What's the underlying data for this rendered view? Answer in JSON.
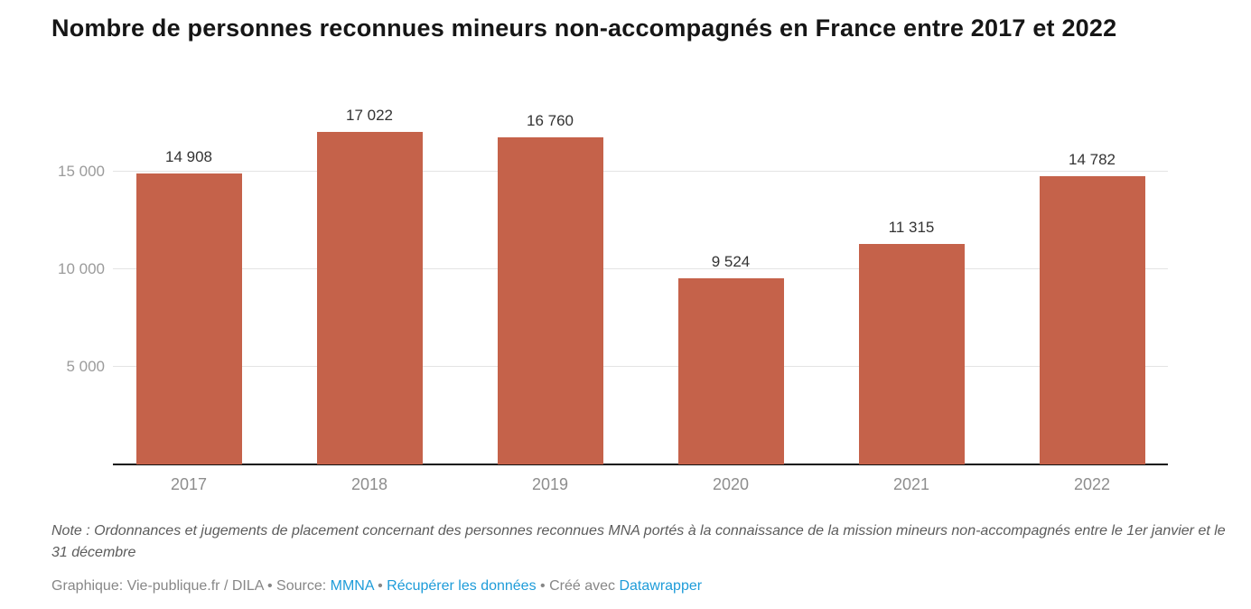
{
  "title": "Nombre de personnes reconnues mineurs non-accompagnés en France entre 2017 et 2022",
  "chart_data": {
    "type": "bar",
    "categories": [
      "2017",
      "2018",
      "2019",
      "2020",
      "2021",
      "2022"
    ],
    "values": [
      14908,
      17022,
      16760,
      9524,
      11315,
      14782
    ],
    "value_labels": [
      "14 908",
      "17 022",
      "16 760",
      "9 524",
      "11 315",
      "14 782"
    ],
    "yticks": [
      {
        "value": 5000,
        "label": "5 000"
      },
      {
        "value": 10000,
        "label": "10 000"
      },
      {
        "value": 15000,
        "label": "15 000"
      }
    ],
    "ylim": [
      0,
      17300
    ],
    "xlabel": "",
    "ylabel": "",
    "grid": true,
    "legend": "none",
    "bar_color": "#c5624a"
  },
  "note": {
    "text": "Note : Ordonnances et jugements de placement concernant des personnes reconnues MNA portés à la connaissance de la mission mineurs non-accompagnés entre le 1er janvier et le 31 décembre"
  },
  "footer": {
    "credit": "Graphique: Vie-publique.fr / DILA",
    "separator": "•",
    "source_label": "Source:",
    "source_link": "MMNA",
    "data_link": "Récupérer les données",
    "created_label": "Créé avec",
    "tool_link": "Datawrapper",
    "link_color": "#1e9cd9"
  }
}
